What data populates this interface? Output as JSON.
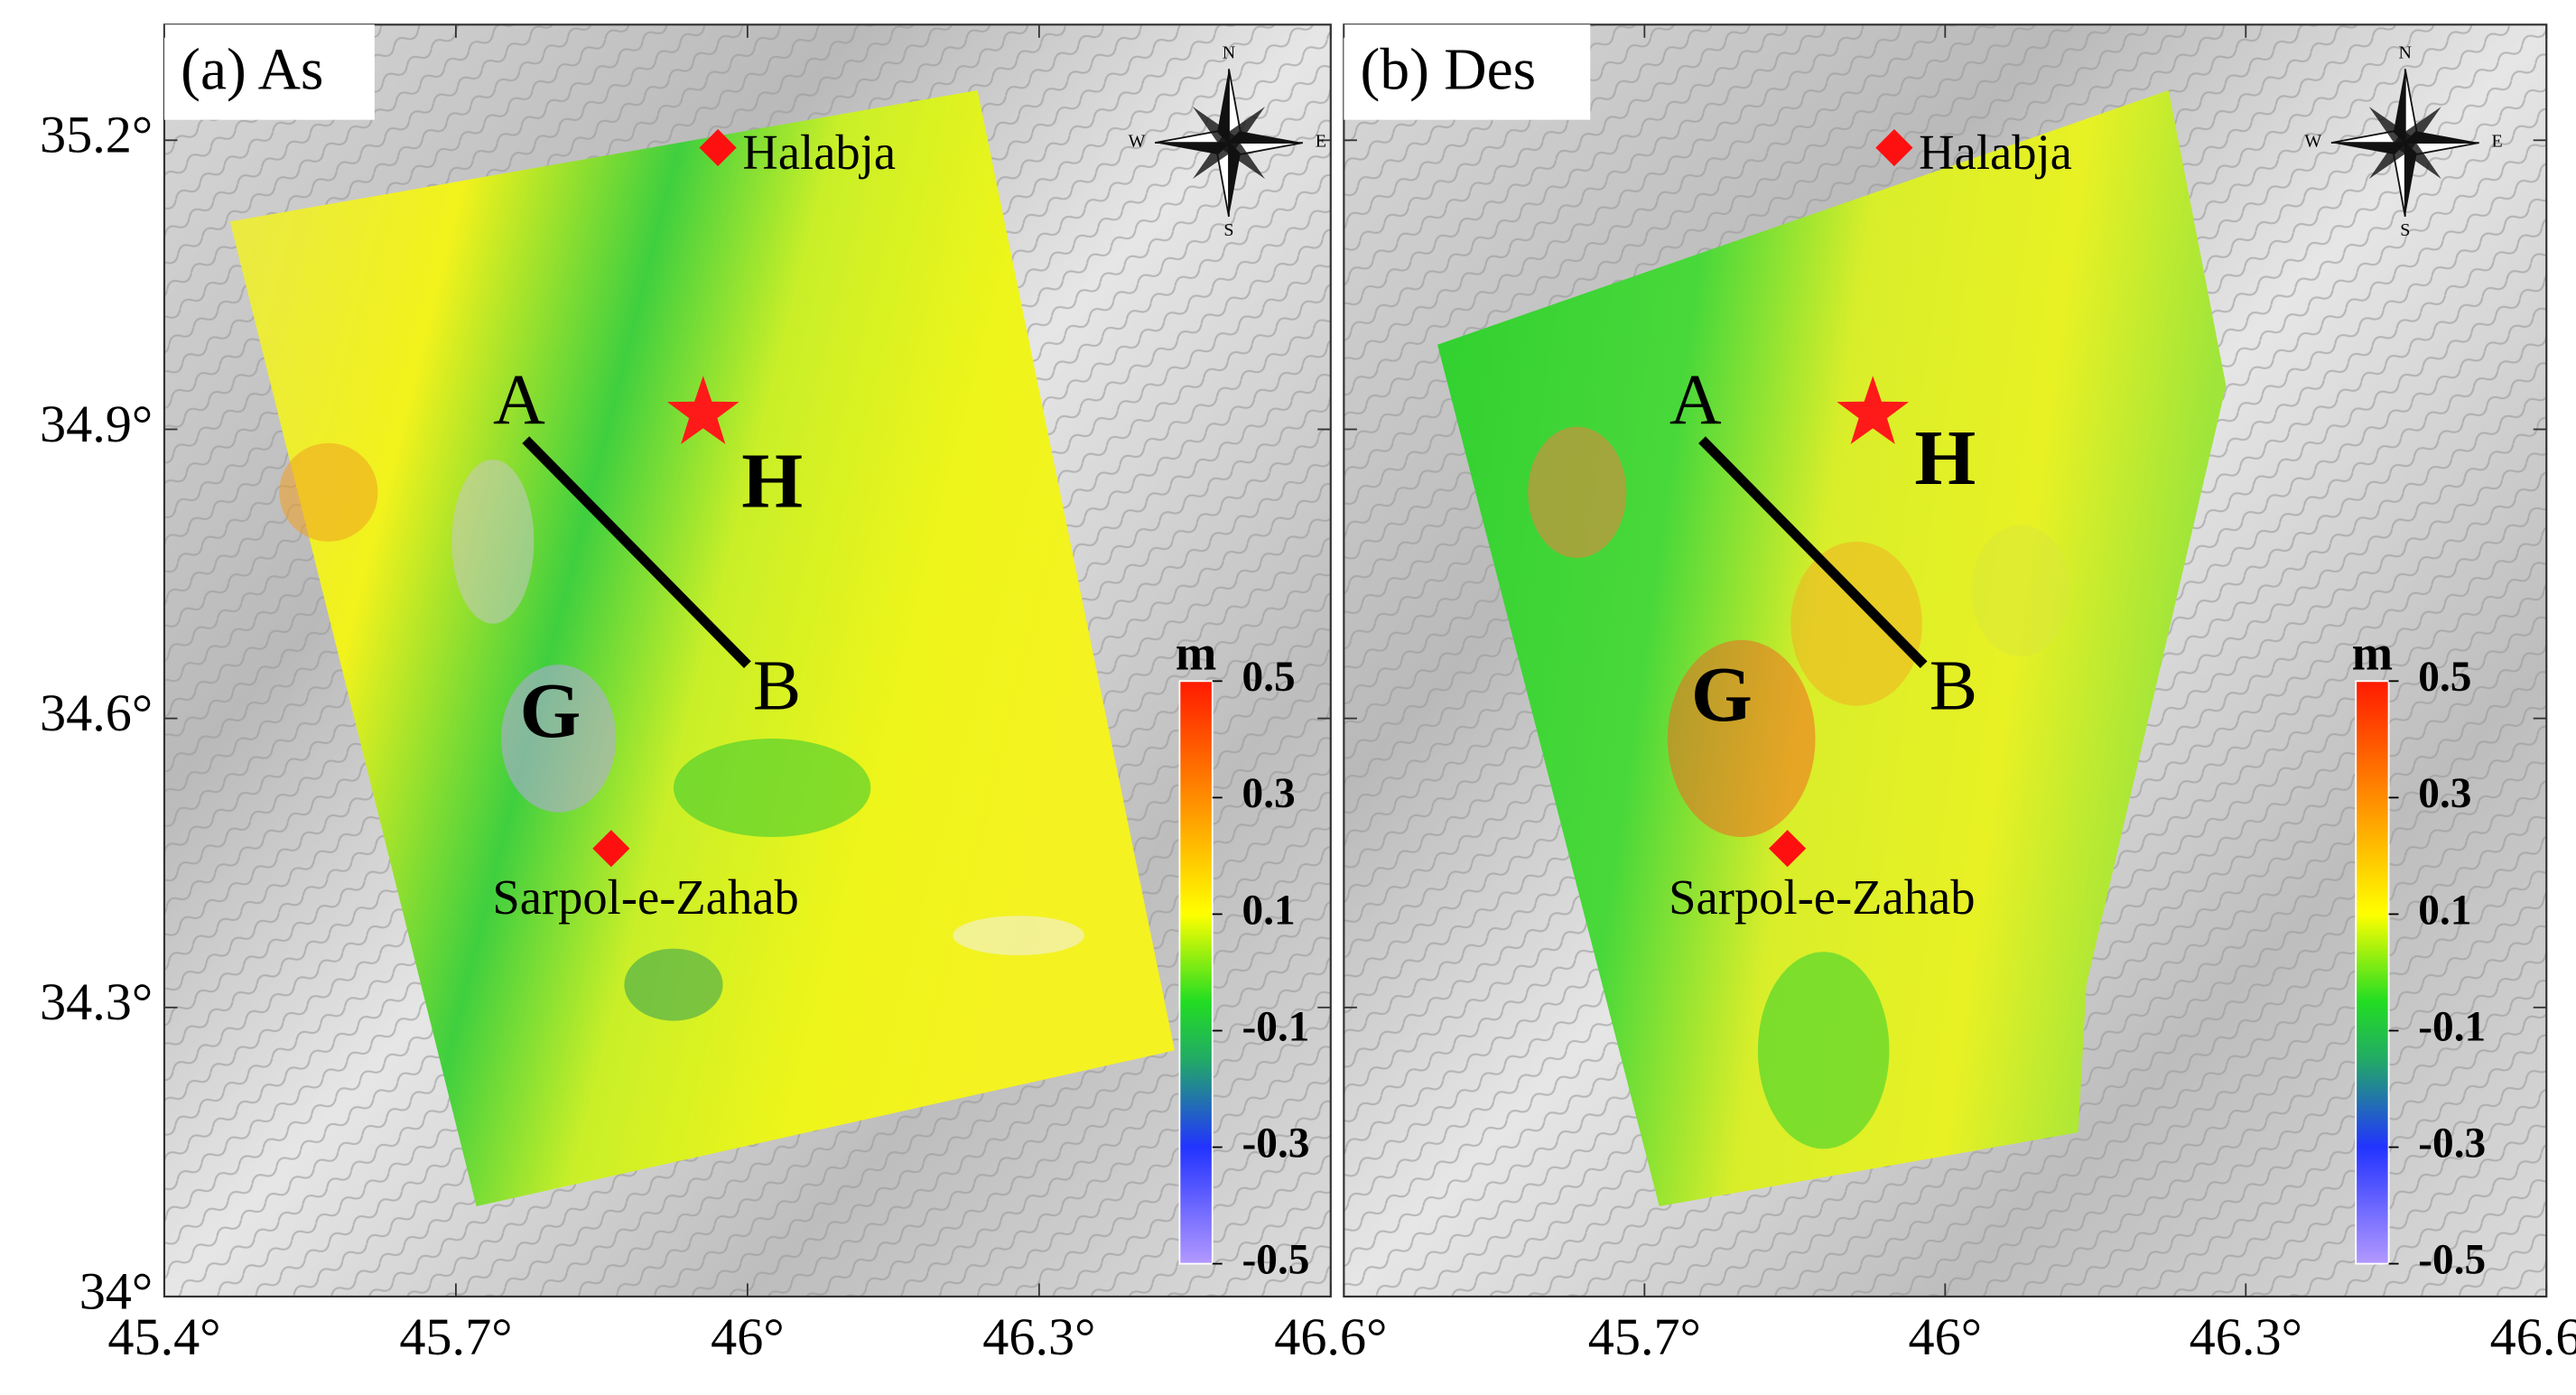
{
  "x_axis": {
    "lim": [
      45.4,
      46.6
    ],
    "ticks": [
      {
        "value": 45.4,
        "label": "45.4°"
      },
      {
        "value": 45.7,
        "label": "45.7°"
      },
      {
        "value": 46,
        "label": "46°"
      },
      {
        "value": 46.3,
        "label": "46.3°"
      },
      {
        "value": 46.6,
        "label": "46.6°"
      }
    ]
  },
  "y_axis": {
    "lim": [
      34,
      35.32
    ],
    "ticks": [
      {
        "value": 35.2,
        "label": "35.2°"
      },
      {
        "value": 34.9,
        "label": "34.9°"
      },
      {
        "value": 34.6,
        "label": "34.6°"
      },
      {
        "value": 34.3,
        "label": "34.3°"
      },
      {
        "value": 34,
        "label": "34°"
      }
    ]
  },
  "colorbar": {
    "unit": "m",
    "lim": [
      -0.5,
      0.5
    ],
    "ticks": [
      0.5,
      0.3,
      0.1,
      -0.1,
      -0.3,
      -0.5
    ]
  },
  "panels": [
    {
      "title": "(a) As"
    },
    {
      "title": "(b) Des"
    }
  ],
  "places": [
    "Halabja",
    "Sarpol-e-Zahab"
  ],
  "profile": [
    "A",
    "B"
  ],
  "zones": [
    "G",
    "H"
  ],
  "compass": [
    "N",
    "S",
    "W",
    "E"
  ]
}
